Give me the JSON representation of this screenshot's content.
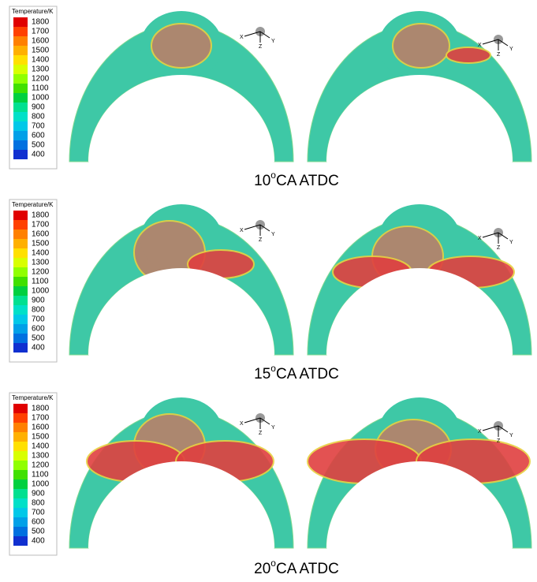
{
  "legend": {
    "title": "Temperature/K",
    "labels": [
      1800,
      1700,
      1600,
      1500,
      1400,
      1300,
      1200,
      1100,
      1000,
      900,
      800,
      700,
      600,
      500,
      400
    ]
  },
  "triad": {
    "x": "X",
    "z": "Z",
    "y": "Y"
  },
  "rows": [
    {
      "caption": {
        "number": "10",
        "superscript": "o",
        "suffix": "CA ATDC"
      }
    },
    {
      "caption": {
        "number": "15",
        "superscript": "o",
        "suffix": "CA ATDC"
      }
    },
    {
      "caption": {
        "number": "20",
        "superscript": "o",
        "suffix": "CA ATDC"
      }
    }
  ]
}
